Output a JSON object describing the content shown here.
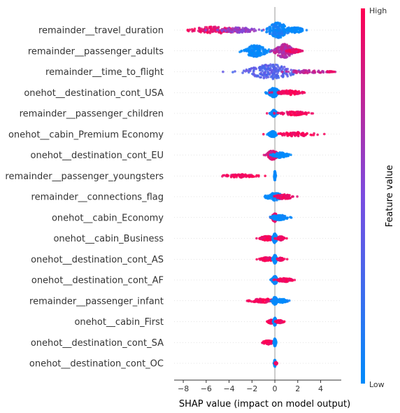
{
  "chart_data": {
    "type": "scatter",
    "subtype": "shap-beeswarm",
    "xlabel": "SHAP value (impact on model output)",
    "xlim": [
      -8.8,
      5.8
    ],
    "xticks": [
      -8,
      -6,
      -4,
      -2,
      0,
      2,
      4
    ],
    "zero_line": true,
    "colorbar": {
      "title": "Feature value",
      "high_label": "High",
      "low_label": "Low",
      "low_color": "#008bfb",
      "high_color": "#ff0052",
      "placement": "right"
    },
    "features": [
      {
        "name": "remainder__travel_duration",
        "clusters": [
          {
            "center": -5.2,
            "spread": 2.6,
            "width": 0.45,
            "color": 0.92
          },
          {
            "center": -3.2,
            "spread": 1.8,
            "width": 0.35,
            "color": 0.6
          },
          {
            "center": 0.3,
            "spread": 1.1,
            "width": 1.0,
            "color": 0.05
          },
          {
            "center": 1.8,
            "spread": 0.9,
            "width": 0.35,
            "color": 0.0
          }
        ]
      },
      {
        "name": "remainder__passenger_adults",
        "clusters": [
          {
            "center": -1.7,
            "spread": 1.3,
            "width": 0.75,
            "color": 0.0
          },
          {
            "center": 0.8,
            "spread": 0.9,
            "width": 0.95,
            "color": 0.72
          },
          {
            "center": 1.7,
            "spread": 0.7,
            "width": 0.25,
            "color": 0.9
          }
        ]
      },
      {
        "name": "remainder__time_to_flight",
        "clusters": [
          {
            "center": -0.3,
            "spread": 2.5,
            "width": 0.95,
            "color": 0.35
          },
          {
            "center": 2.8,
            "spread": 2.0,
            "width": 0.2,
            "color": 0.75
          },
          {
            "center": 4.8,
            "spread": 0.3,
            "width": 0.05,
            "color": 0.95
          }
        ]
      },
      {
        "name": "onehot__destination_cont_USA",
        "clusters": [
          {
            "center": -0.1,
            "spread": 0.6,
            "width": 0.6,
            "color": 0.0
          },
          {
            "center": 1.3,
            "spread": 1.3,
            "width": 0.3,
            "color": 0.97
          }
        ]
      },
      {
        "name": "remainder__passenger_children",
        "clusters": [
          {
            "center": -0.1,
            "spread": 0.3,
            "width": 0.45,
            "color": 0.0
          },
          {
            "center": 1.7,
            "spread": 1.6,
            "width": 0.25,
            "color": 0.97
          }
        ]
      },
      {
        "name": "onehot__cabin_Premium Economy",
        "clusters": [
          {
            "center": -0.2,
            "spread": 0.4,
            "width": 0.4,
            "color": 0.0
          },
          {
            "center": 1.9,
            "spread": 1.9,
            "width": 0.28,
            "color": 0.97
          }
        ]
      },
      {
        "name": "onehot__destination_cont_EU",
        "clusters": [
          {
            "center": -0.2,
            "spread": 0.6,
            "width": 0.6,
            "color": 0.85
          },
          {
            "center": 0.5,
            "spread": 0.8,
            "width": 0.35,
            "color": 0.0
          }
        ]
      },
      {
        "name": "remainder__passenger_youngsters",
        "clusters": [
          {
            "center": -3.0,
            "spread": 1.7,
            "width": 0.22,
            "color": 0.97
          },
          {
            "center": 0.0,
            "spread": 0.06,
            "width": 0.6,
            "color": 0.0
          }
        ]
      },
      {
        "name": "remainder__connections_flag",
        "clusters": [
          {
            "center": 0.0,
            "spread": 0.9,
            "width": 0.5,
            "color": 0.0
          },
          {
            "center": 0.8,
            "spread": 1.0,
            "width": 0.3,
            "color": 0.92
          }
        ]
      },
      {
        "name": "onehot__cabin_Economy",
        "clusters": [
          {
            "center": 0.0,
            "spread": 0.3,
            "width": 0.55,
            "color": 0.92
          },
          {
            "center": 0.4,
            "spread": 0.9,
            "width": 0.35,
            "color": 0.0
          }
        ]
      },
      {
        "name": "onehot__cabin_Business",
        "clusters": [
          {
            "center": -0.7,
            "spread": 0.7,
            "width": 0.3,
            "color": 0.95
          },
          {
            "center": 0.0,
            "spread": 0.25,
            "width": 0.6,
            "color": 0.0
          },
          {
            "center": 0.5,
            "spread": 0.4,
            "width": 0.25,
            "color": 0.95
          }
        ]
      },
      {
        "name": "onehot__destination_cont_AS",
        "clusters": [
          {
            "center": -0.7,
            "spread": 0.7,
            "width": 0.25,
            "color": 0.95
          },
          {
            "center": 0.0,
            "spread": 0.2,
            "width": 0.55,
            "color": 0.0
          },
          {
            "center": 0.5,
            "spread": 0.3,
            "width": 0.2,
            "color": 0.95
          }
        ]
      },
      {
        "name": "onehot__destination_cont_AF",
        "clusters": [
          {
            "center": 0.0,
            "spread": 0.3,
            "width": 0.5,
            "color": 0.0
          },
          {
            "center": 0.8,
            "spread": 0.9,
            "width": 0.25,
            "color": 0.95
          }
        ]
      },
      {
        "name": "remainder__passenger_infant",
        "clusters": [
          {
            "center": -1.0,
            "spread": 1.4,
            "width": 0.28,
            "color": 0.97
          },
          {
            "center": 0.0,
            "spread": 0.3,
            "width": 0.5,
            "color": 0.0
          },
          {
            "center": 0.6,
            "spread": 0.6,
            "width": 0.25,
            "color": 0.0
          }
        ]
      },
      {
        "name": "onehot__cabin_First",
        "clusters": [
          {
            "center": -0.3,
            "spread": 0.4,
            "width": 0.25,
            "color": 0.95
          },
          {
            "center": 0.0,
            "spread": 0.15,
            "width": 0.5,
            "color": 0.0
          },
          {
            "center": 0.4,
            "spread": 0.4,
            "width": 0.2,
            "color": 0.95
          }
        ]
      },
      {
        "name": "onehot__destination_cont_SA",
        "clusters": [
          {
            "center": -0.6,
            "spread": 0.6,
            "width": 0.25,
            "color": 0.95
          },
          {
            "center": 0.0,
            "spread": 0.12,
            "width": 0.5,
            "color": 0.0
          }
        ]
      },
      {
        "name": "onehot__destination_cont_OC",
        "clusters": [
          {
            "center": 0.0,
            "spread": 0.08,
            "width": 0.45,
            "color": 0.0
          },
          {
            "center": 0.1,
            "spread": 0.1,
            "width": 0.15,
            "color": 0.95
          }
        ]
      }
    ]
  }
}
